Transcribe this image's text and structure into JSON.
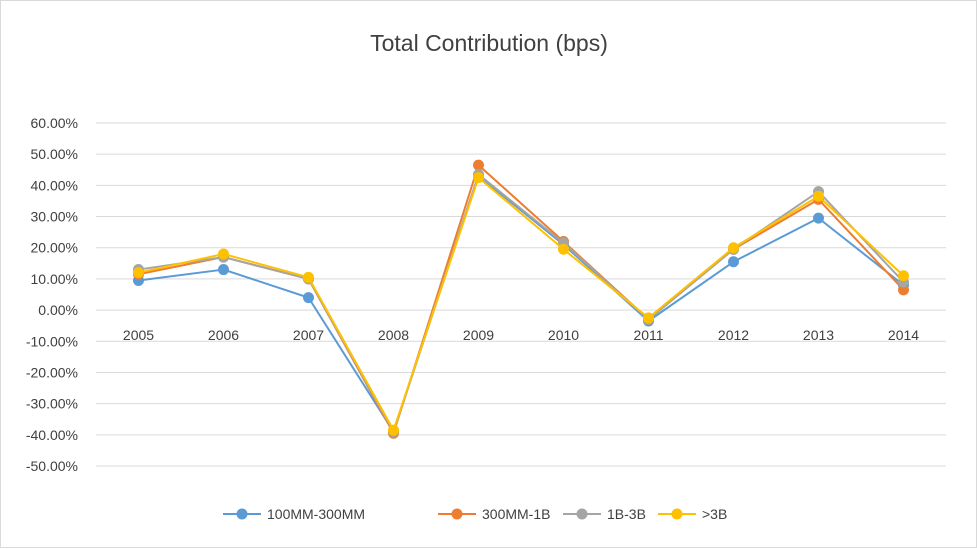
{
  "chart_data": {
    "type": "line",
    "title": "Total Contribution (bps)",
    "xlabel": "",
    "ylabel": "",
    "categories": [
      "2005",
      "2006",
      "2007",
      "2008",
      "2009",
      "2010",
      "2011",
      "2012",
      "2013",
      "2014"
    ],
    "ylim": [
      -0.5,
      0.6
    ],
    "y_ticks": [
      0.6,
      0.5,
      0.4,
      0.3,
      0.2,
      0.1,
      0.0,
      -0.1,
      -0.2,
      -0.3,
      -0.4,
      -0.5
    ],
    "y_tick_labels": [
      "60.00%",
      "50.00%",
      "40.00%",
      "30.00%",
      "20.00%",
      "10.00%",
      "0.00%",
      "-10.00%",
      "-20.00%",
      "-30.00%",
      "-40.00%",
      "-50.00%"
    ],
    "grid": true,
    "legend_position": "bottom",
    "series": [
      {
        "name": "100MM-300MM",
        "color": "#5b9bd5",
        "values": [
          0.095,
          0.13,
          0.04,
          -0.39,
          0.43,
          0.21,
          -0.035,
          0.155,
          0.295,
          0.08
        ]
      },
      {
        "name": "300MM-1B",
        "color": "#ed7d31",
        "values": [
          0.115,
          0.17,
          0.1,
          -0.395,
          0.465,
          0.22,
          -0.03,
          0.195,
          0.355,
          0.065
        ]
      },
      {
        "name": "1B-3B",
        "color": "#a5a5a5",
        "values": [
          0.13,
          0.17,
          0.1,
          -0.39,
          0.435,
          0.215,
          -0.03,
          0.195,
          0.38,
          0.09
        ]
      },
      {
        "name": ">3B",
        "color": "#ffc000",
        "values": [
          0.12,
          0.18,
          0.105,
          -0.385,
          0.425,
          0.195,
          -0.025,
          0.2,
          0.365,
          0.11
        ]
      }
    ]
  }
}
